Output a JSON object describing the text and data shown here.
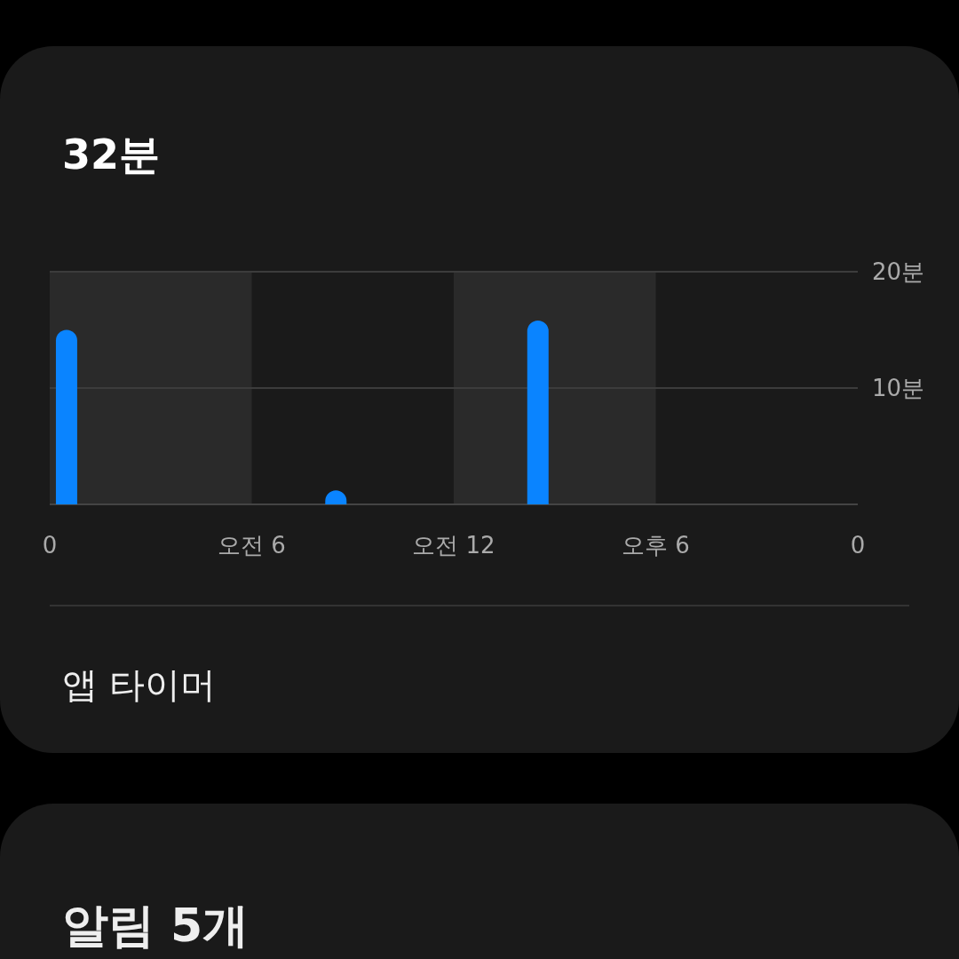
{
  "chart_data": {
    "type": "bar",
    "title": "32분",
    "categories": [
      "0",
      null,
      null,
      null,
      null,
      null,
      "오전 6",
      null,
      null,
      null,
      null,
      null,
      "오전 12",
      null,
      null,
      null,
      null,
      null,
      "오후 6",
      null,
      null,
      null,
      null,
      null,
      "0"
    ],
    "values": [
      15,
      null,
      null,
      null,
      null,
      null,
      null,
      null,
      1.2,
      null,
      null,
      null,
      null,
      null,
      15.8,
      null,
      null,
      null,
      null,
      null,
      null,
      null,
      null,
      null,
      null
    ],
    "color": "#0a84ff",
    "ylim": [
      0,
      20
    ],
    "yticks": [
      {
        "value": 10,
        "label": "10분"
      },
      {
        "value": 20,
        "label": "20분"
      }
    ],
    "grid": "y",
    "bands": [
      {
        "axis": "x",
        "from": "0",
        "to": "오전 6",
        "color": "#2a2a2a"
      },
      {
        "axis": "x",
        "from": "오전 12",
        "to": "오후 6",
        "color": "#2a2a2a"
      }
    ],
    "annotations": [
      "앱 타이머",
      "알림 5개"
    ]
  }
}
